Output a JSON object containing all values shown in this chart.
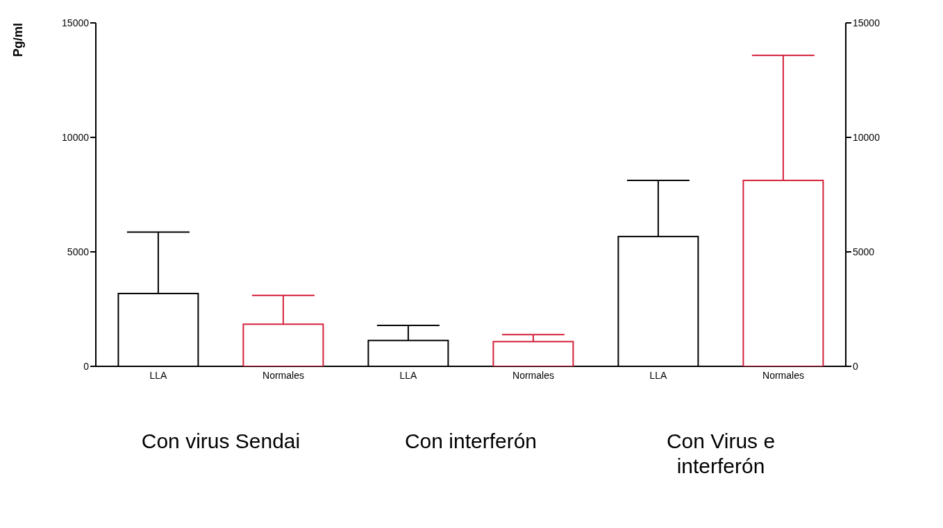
{
  "chart_data": {
    "type": "bar",
    "ylabel": "Pg/ml",
    "categories": [
      "LLA",
      "Normales",
      "LLA",
      "Normales",
      "LLA",
      "Normales"
    ],
    "values": [
      3180,
      1840,
      1130,
      1080,
      5670,
      8120
    ],
    "colors": [
      "#000000",
      "#d4203a",
      "#000000",
      "#d4203a",
      "#000000",
      "#d4203a"
    ],
    "errors": [
      [
        3180,
        5860
      ],
      [
        1840,
        3100
      ],
      [
        1130,
        1790
      ],
      [
        1080,
        1390
      ],
      [
        5670,
        8120
      ],
      [
        8120,
        13580
      ]
    ],
    "ylim": [
      0,
      15000
    ],
    "yticks": [
      0,
      5000,
      10000,
      15000
    ],
    "y2lim": [
      0,
      15000
    ],
    "y2ticks": [
      0,
      5000,
      10000,
      15000
    ],
    "grid": false,
    "legend": false,
    "annotations": [
      "Con virus Sendai",
      "Con interferón",
      "Con Virus e interferón"
    ]
  }
}
